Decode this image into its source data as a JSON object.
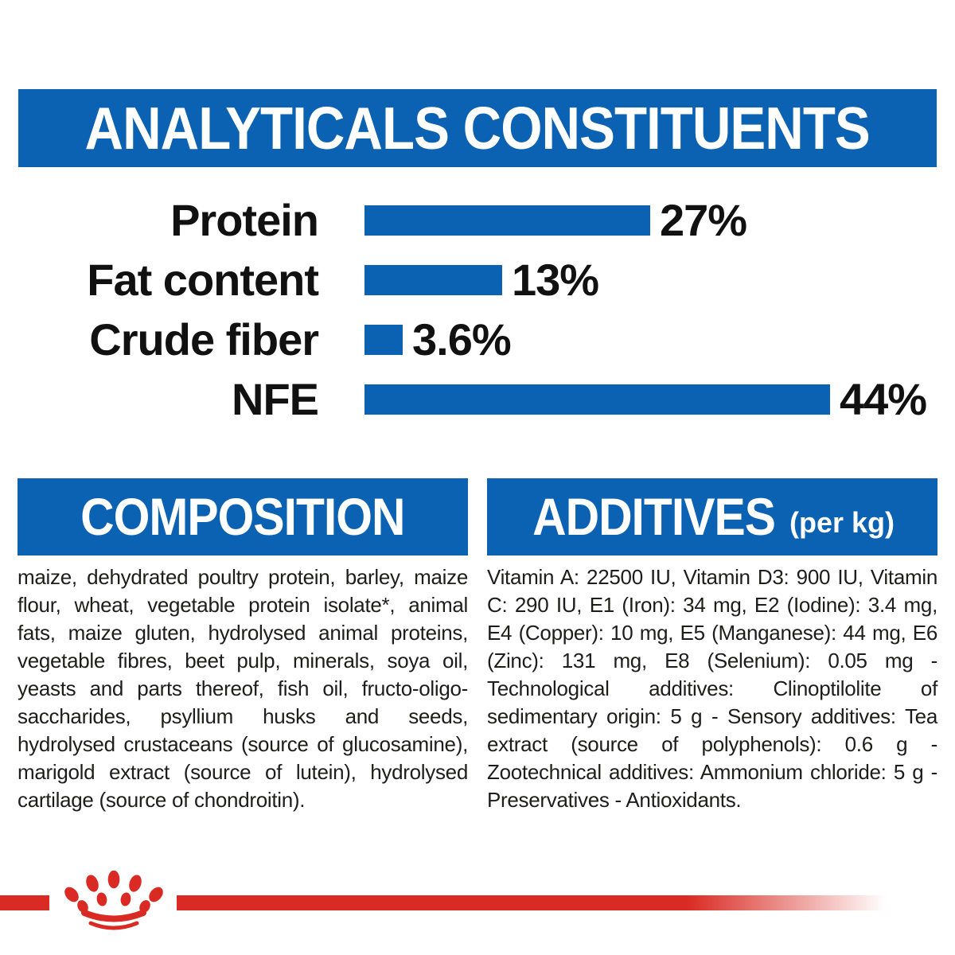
{
  "colors": {
    "brand_blue": "#0c62b2",
    "brand_red": "#d92b23",
    "text": "#1d1d1b",
    "background": "#ffffff"
  },
  "header": {
    "title": "ANALYTICALS CONSTITUENTS"
  },
  "chart_data": {
    "type": "bar",
    "orientation": "horizontal",
    "title": "ANALYTICALS CONSTITUENTS",
    "categories": [
      "Protein",
      "Fat content",
      "Crude fiber",
      "NFE"
    ],
    "values": [
      27,
      13,
      3.6,
      44
    ],
    "value_labels": [
      "27%",
      "13%",
      "3.6%",
      "44%"
    ],
    "unit": "%",
    "xlim": [
      0,
      55
    ],
    "bar_color": "#0c62b2",
    "grid": "off",
    "legend": "none"
  },
  "sections": {
    "composition": {
      "title": "COMPOSITION",
      "body": "maize, dehydrated poultry protein, barley, maize flour, wheat, vegetable protein isolate*, animal fats, maize gluten, hydrolysed animal proteins, vegetable fibres, beet pulp, minerals, soya oil, yeasts and parts thereof, fish oil, fructo-oligo-saccharides, psyllium husks and seeds, hydrolysed crustaceans (source of glucosamine), marigold extract (source of lutein), hydrolysed cartilage (source of chondroitin)."
    },
    "additives": {
      "title": "ADDITIVES",
      "subtitle": "(per kg)",
      "body": "Vitamin A: 22500 IU, Vitamin D3: 900 IU, Vitamin C: 290 IU, E1 (Iron): 34 mg, E2 (Iodine): 3.4 mg, E4 (Copper): 10 mg, E5 (Manganese): 44 mg, E6 (Zinc): 131 mg, E8 (Selenium): 0.05 mg - Technological additives: Clinoptilolite of sedimentary origin: 5 g - Sensory additives: Tea extract (source of polyphenols): 0.6 g - Zootechnical additives: Ammonium chloride: 5 g - Preservatives - Antioxidants."
    }
  },
  "footer": {
    "logo": "royal-canin-crown"
  }
}
